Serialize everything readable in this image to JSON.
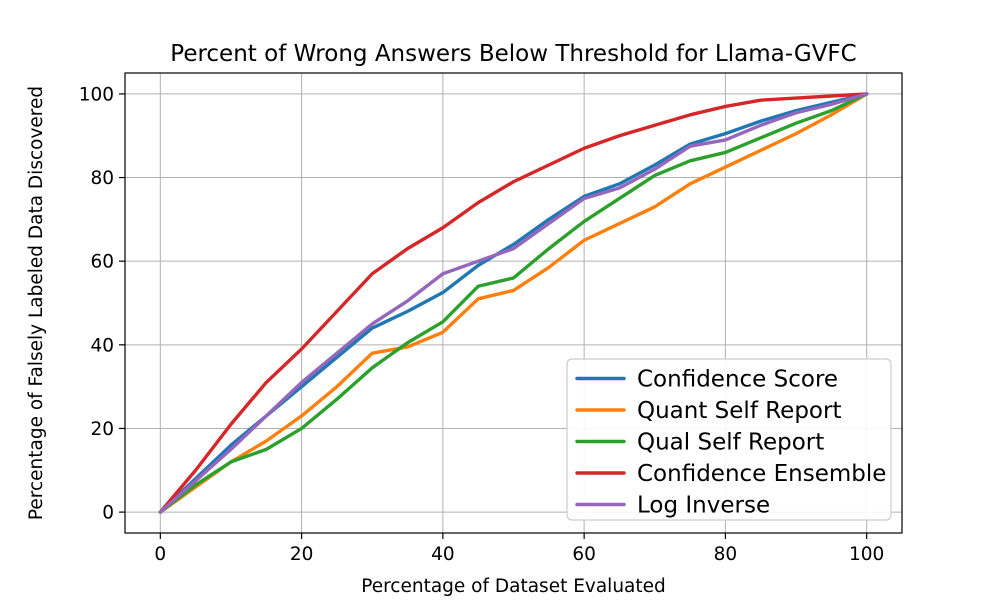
{
  "figure": {
    "background": "#ffffff"
  },
  "chart_data": {
    "type": "line",
    "title": "Percent of Wrong Answers Below Threshold for Llama-GVFC",
    "xlabel": "Percentage of Dataset Evaluated",
    "ylabel": "Percentage of Falsely Labeled Data Discovered",
    "xlim": [
      -5,
      105
    ],
    "ylim": [
      -5,
      105
    ],
    "x_ticks": [
      0,
      20,
      40,
      60,
      80,
      100
    ],
    "y_ticks": [
      0,
      20,
      40,
      60,
      80,
      100
    ],
    "grid": true,
    "grid_color": "#b0b0b0",
    "axes_edge_color": "#000000",
    "legend_position": "lower right",
    "line_width": 3.4,
    "x": [
      0,
      5,
      10,
      15,
      20,
      25,
      30,
      35,
      40,
      45,
      50,
      55,
      60,
      65,
      70,
      75,
      80,
      85,
      90,
      95,
      100
    ],
    "series": [
      {
        "name": "Confidence Score",
        "color": "#1f77b4",
        "values": [
          0,
          8,
          16,
          23,
          30,
          37,
          44,
          48,
          52.5,
          59,
          64,
          70,
          75.5,
          78.5,
          83,
          88,
          90.5,
          93.5,
          96,
          98,
          100
        ]
      },
      {
        "name": "Quant Self Report",
        "color": "#ff7f0e",
        "values": [
          0,
          6,
          12,
          17,
          23,
          30,
          38,
          39.5,
          43,
          51,
          53,
          58.5,
          65,
          69,
          73,
          78.5,
          82.5,
          86.5,
          90.5,
          95,
          100
        ]
      },
      {
        "name": "Qual Self Report",
        "color": "#2ca02c",
        "values": [
          0,
          6.5,
          12,
          15,
          20,
          27,
          34.5,
          40.5,
          45.5,
          54,
          56,
          63,
          69.5,
          75,
          80.5,
          84,
          86,
          89.5,
          93,
          96,
          100
        ]
      },
      {
        "name": "Confidence Ensemble",
        "color": "#d62728",
        "values": [
          0,
          10,
          21,
          31,
          39,
          48,
          57,
          63,
          68,
          74,
          79,
          83,
          87,
          90,
          92.5,
          95,
          97,
          98.5,
          99,
          99.5,
          100
        ]
      },
      {
        "name": "Log Inverse",
        "color": "#9467bd",
        "values": [
          0,
          7.5,
          15,
          23,
          31,
          38,
          45,
          50.5,
          57,
          60,
          63,
          69,
          75,
          77.5,
          82,
          87.5,
          89,
          92.5,
          95.5,
          97.5,
          100
        ]
      }
    ]
  }
}
